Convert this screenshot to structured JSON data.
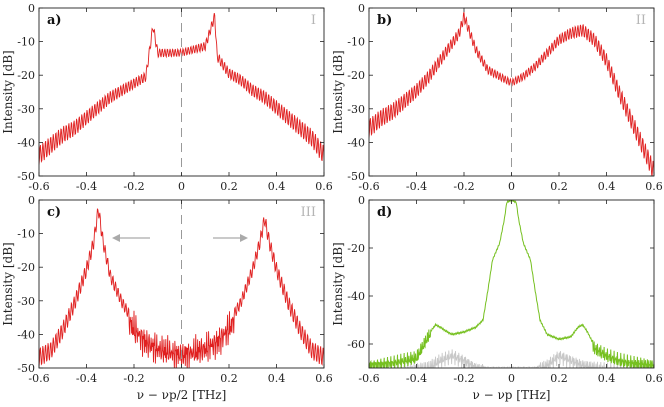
{
  "chart_data": [
    {
      "panel": "a)",
      "label": "I",
      "type": "line",
      "ylabel": "Intensity [dB]",
      "xlim": [
        -0.6,
        0.6
      ],
      "ylim": [
        -50,
        0
      ],
      "xticks": [
        "-0.6",
        "-0.4",
        "-0.2",
        "0",
        "0.2",
        "0.4",
        "0.6"
      ],
      "yticks": [
        "0",
        "-10",
        "-20",
        "-30",
        "-40",
        "-50"
      ],
      "center_line": true,
      "series": [
        {
          "color": "#e02020",
          "x": [
            -0.6,
            -0.55,
            -0.5,
            -0.45,
            -0.4,
            -0.35,
            -0.3,
            -0.25,
            -0.2,
            -0.15,
            -0.12,
            -0.1,
            -0.05,
            0,
            0.05,
            0.1,
            0.14,
            0.15,
            0.2,
            0.25,
            0.3,
            0.35,
            0.4,
            0.45,
            0.5,
            0.55,
            0.6
          ],
          "y": [
            -43,
            -40,
            -37,
            -35,
            -32,
            -29,
            -26,
            -24,
            -22,
            -20,
            -5,
            -13,
            -13,
            -13,
            -12,
            -11,
            -2,
            -14,
            -19,
            -21,
            -24,
            -26,
            -29,
            -32,
            -35,
            -38,
            -43
          ]
        }
      ]
    },
    {
      "panel": "b)",
      "label": "II",
      "type": "line",
      "ylabel": "Intensity [dB]",
      "xlim": [
        -0.6,
        0.6
      ],
      "ylim": [
        -50,
        0
      ],
      "xticks": [
        "-0.6",
        "-0.4",
        "-0.2",
        "0",
        "0.2",
        "0.4",
        "0.6"
      ],
      "yticks": [
        "0",
        "-10",
        "-20",
        "-30",
        "-40",
        "-50"
      ],
      "center_line": true,
      "series": [
        {
          "color": "#e02020",
          "x": [
            -0.6,
            -0.55,
            -0.5,
            -0.45,
            -0.4,
            -0.35,
            -0.3,
            -0.25,
            -0.22,
            -0.2,
            -0.15,
            -0.1,
            -0.05,
            0,
            0.05,
            0.1,
            0.15,
            0.2,
            0.25,
            0.3,
            0.35,
            0.4,
            0.45,
            0.5,
            0.55,
            0.6
          ],
          "y": [
            -35,
            -32,
            -30,
            -27,
            -24,
            -20,
            -15,
            -10,
            -7,
            -2,
            -12,
            -18,
            -20,
            -22,
            -20,
            -17,
            -13,
            -9,
            -7,
            -6,
            -9,
            -15,
            -24,
            -32,
            -40,
            -48
          ]
        }
      ]
    },
    {
      "panel": "c)",
      "label": "III",
      "type": "line",
      "ylabel": "Intensity [dB]",
      "xlabel": "ν − νp/2 [THz]",
      "xlim": [
        -0.6,
        0.6
      ],
      "ylim": [
        -50,
        0
      ],
      "xticks": [
        "-0.6",
        "-0.4",
        "-0.2",
        "0",
        "0.2",
        "0.4",
        "0.6"
      ],
      "yticks": [
        "0",
        "-10",
        "-20",
        "-30",
        "-40",
        "-50"
      ],
      "center_line": true,
      "arrows": true,
      "series": [
        {
          "color": "#e02020",
          "x": [
            -0.6,
            -0.55,
            -0.5,
            -0.45,
            -0.4,
            -0.37,
            -0.35,
            -0.33,
            -0.3,
            -0.25,
            -0.2,
            -0.15,
            -0.1,
            -0.05,
            0,
            0.05,
            0.1,
            0.15,
            0.2,
            0.25,
            0.3,
            0.33,
            0.35,
            0.37,
            0.4,
            0.45,
            0.5,
            0.55,
            0.6
          ],
          "y": [
            -46,
            -44,
            -38,
            -30,
            -20,
            -12,
            -2,
            -12,
            -22,
            -30,
            -36,
            -40,
            -42,
            -43,
            -44,
            -43,
            -42,
            -40,
            -36,
            -30,
            -20,
            -12,
            -5,
            -12,
            -20,
            -30,
            -38,
            -44,
            -46
          ]
        }
      ]
    },
    {
      "panel": "d)",
      "type": "line",
      "ylabel": "Intensity [dB]",
      "xlabel": "ν − νp [THz]",
      "xlim": [
        -0.6,
        0.6
      ],
      "ylim": [
        -70,
        0
      ],
      "xticks": [
        "-0.6",
        "-0.4",
        "-0.2",
        "0",
        "0.2",
        "0.4",
        "0.6"
      ],
      "yticks": [
        "0",
        "-20",
        "-40",
        "-60"
      ],
      "center_line": false,
      "series": [
        {
          "color": "#c8c8c8",
          "x": [
            -0.6,
            -0.5,
            -0.4,
            -0.35,
            -0.3,
            -0.25,
            -0.2,
            -0.15,
            -0.1,
            0.1,
            0.15,
            0.2,
            0.25,
            0.3,
            0.35,
            0.4,
            0.5,
            0.6
          ],
          "y": [
            -70,
            -70,
            -70,
            -69,
            -66,
            -64,
            -66,
            -69,
            -70,
            -70,
            -68,
            -64,
            -66,
            -68,
            -69,
            -70,
            -70,
            -70
          ]
        },
        {
          "color": "#76c020",
          "x": [
            -0.6,
            -0.5,
            -0.45,
            -0.4,
            -0.35,
            -0.32,
            -0.3,
            -0.27,
            -0.25,
            -0.2,
            -0.15,
            -0.12,
            -0.1,
            -0.08,
            -0.05,
            -0.03,
            -0.02,
            0,
            0.02,
            0.03,
            0.05,
            0.08,
            0.1,
            0.12,
            0.15,
            0.2,
            0.25,
            0.28,
            0.3,
            0.32,
            0.35,
            0.4,
            0.45,
            0.5,
            0.6
          ],
          "y": [
            -68,
            -67,
            -66,
            -65,
            -56,
            -52,
            -53,
            -55,
            -56,
            -55,
            -53,
            -50,
            -38,
            -25,
            -18,
            -8,
            -1,
            0,
            -1,
            -8,
            -18,
            -25,
            -38,
            -50,
            -56,
            -58,
            -57,
            -53,
            -52,
            -55,
            -61,
            -64,
            -66,
            -67,
            -68
          ]
        }
      ]
    }
  ]
}
